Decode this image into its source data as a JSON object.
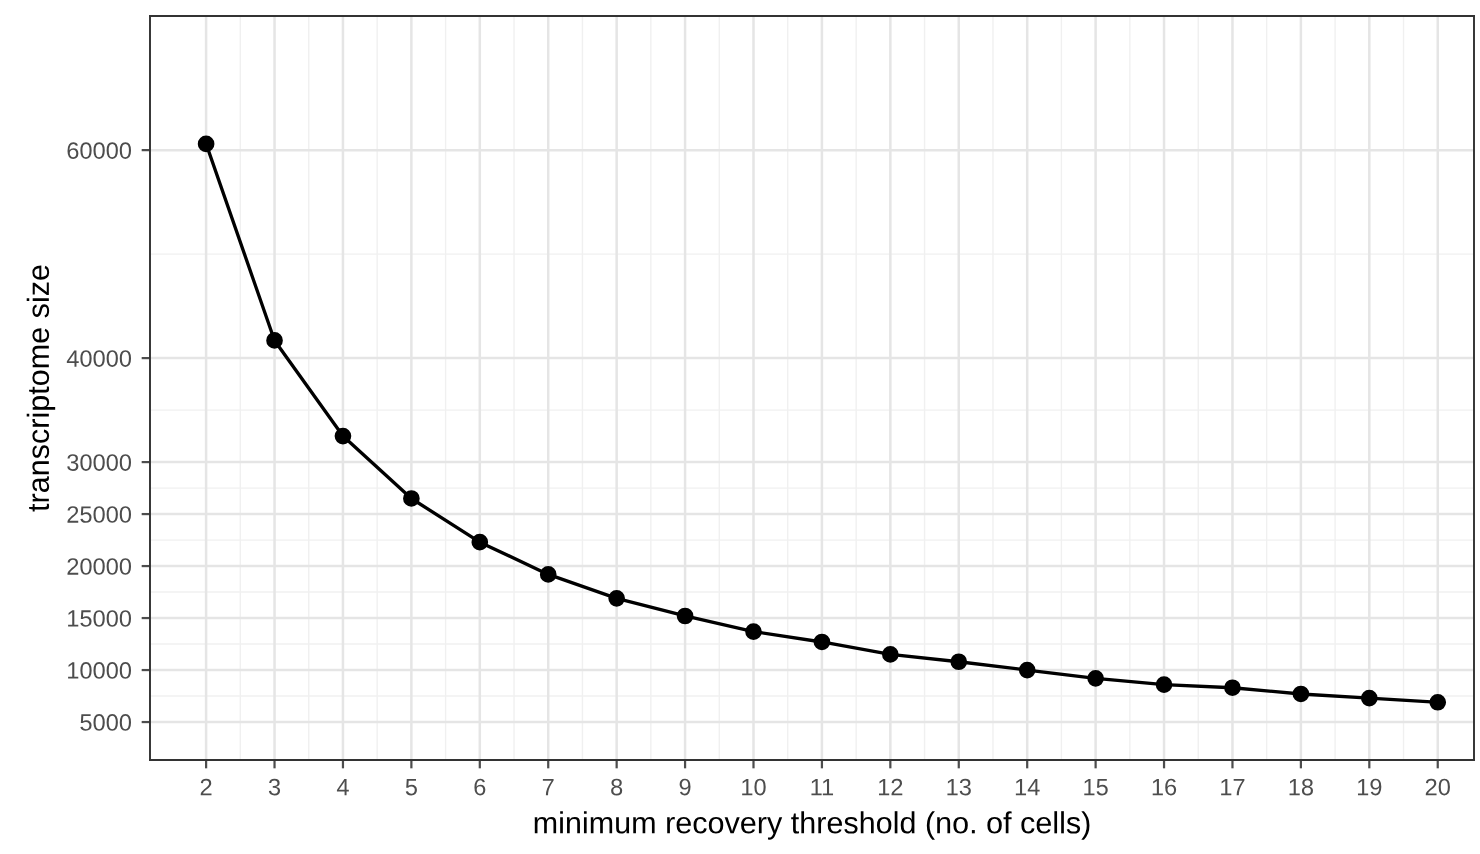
{
  "chart_data": {
    "type": "line",
    "xlabel": "minimum recovery threshold (no. of cells)",
    "ylabel": "transcriptome size",
    "x": [
      2,
      3,
      4,
      5,
      6,
      7,
      8,
      9,
      10,
      11,
      12,
      13,
      14,
      15,
      16,
      17,
      18,
      19,
      20
    ],
    "series": [
      {
        "color": "#000000",
        "values": [
          60600,
          41700,
          32500,
          26500,
          22300,
          19200,
          16900,
          15200,
          13700,
          12700,
          11500,
          10800,
          10000,
          9200,
          8600,
          8300,
          7700,
          7300,
          6900
        ]
      }
    ],
    "xlim": [
      1.18,
      20.53
    ],
    "xticks": [
      2,
      3,
      4,
      5,
      6,
      7,
      8,
      9,
      10,
      11,
      12,
      13,
      14,
      15,
      16,
      17,
      18,
      19,
      20
    ],
    "ylim": [
      1350,
      72900
    ],
    "yticks": [
      5000,
      10000,
      15000,
      20000,
      25000,
      30000,
      40000,
      60000
    ],
    "grid": true,
    "marker": "circle",
    "line_style": "solid"
  }
}
